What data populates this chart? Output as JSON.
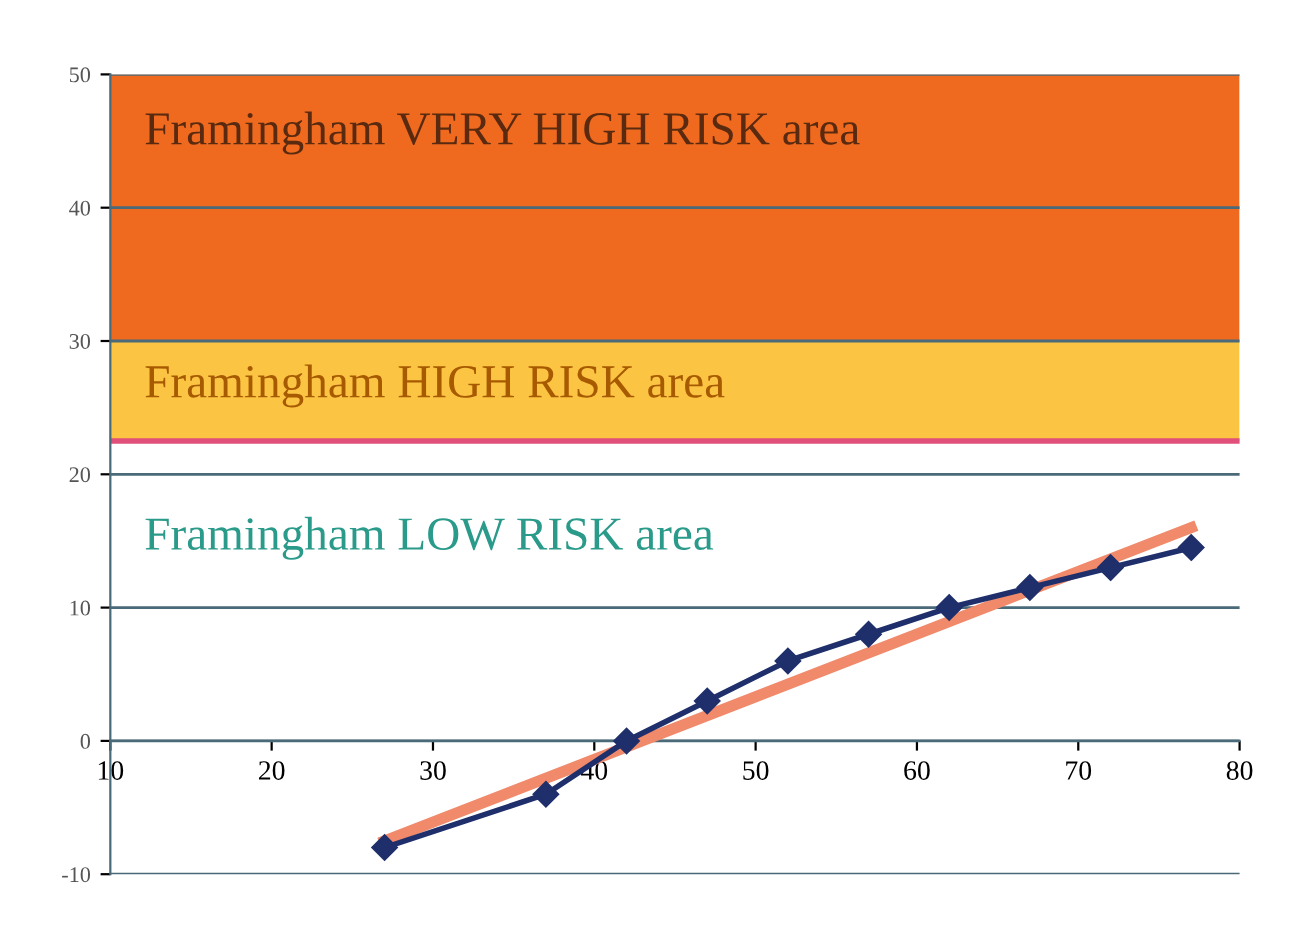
{
  "chart_data": {
    "type": "line",
    "x": [
      27,
      37,
      42,
      47,
      52,
      57,
      62,
      67,
      72,
      77
    ],
    "series": [
      {
        "color": "#1f2f6b",
        "values": [
          -8,
          -4,
          0,
          3,
          6,
          8,
          10,
          11.5,
          13,
          14.5
        ],
        "marker": "diamond"
      },
      {
        "color": "#f08a6a",
        "x": [
          27,
          77
        ],
        "values": [
          -7.5,
          16
        ],
        "marker": "none"
      }
    ],
    "xlim": [
      10,
      80
    ],
    "xticks": [
      10,
      20,
      30,
      40,
      50,
      60,
      70,
      80
    ],
    "ylim": [
      -10,
      50
    ],
    "yticks": [
      -10,
      0,
      10,
      20,
      30,
      40,
      50
    ],
    "grid": "y",
    "bands": [
      {
        "axis": "y",
        "from": 30,
        "to": 50,
        "label": "Framingham VERY HIGH RISK area",
        "color": "#ef6a1f"
      },
      {
        "axis": "y",
        "from": 22.5,
        "to": 30,
        "label": "Framingham HIGH RISK area",
        "color": "#fbc443"
      }
    ],
    "ref_lines": [
      {
        "axis": "y",
        "value": 22.5,
        "color": "#e0507a"
      }
    ],
    "annotations": [
      "Framingham LOW RISK area"
    ]
  }
}
